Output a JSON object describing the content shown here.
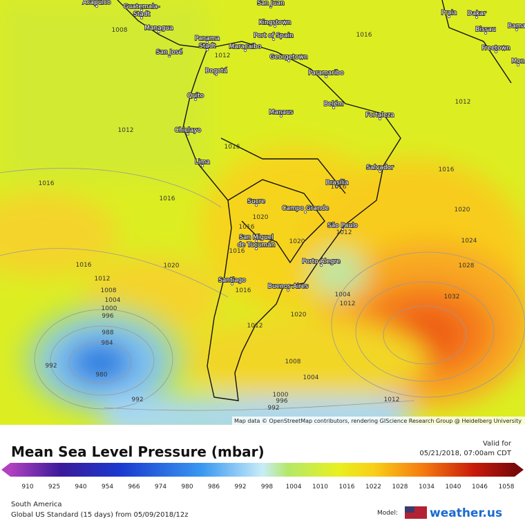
{
  "map": {
    "attribution": "Map data © OpenStreetMap contributors, rendering GIScience Research Group @ Heidelberg University",
    "cities": [
      "Acapulco",
      "Guatemala-",
      "Stadt",
      "Managua",
      "San José",
      "Panama",
      "Stadt",
      "Maracaibo",
      "San Juan",
      "Kingstown",
      "Port of Spain",
      "Georgetown",
      "Paramaribo",
      "Bogotá",
      "Quito",
      "Manaus",
      "Belém",
      "Fortaleza",
      "Chiclayo",
      "Lima",
      "Salvador",
      "Brasília",
      "Sucre",
      "Campo Grande",
      "São Paulo",
      "San Miguel",
      "de Tucumán",
      "Porto Alegre",
      "Santiago",
      "Buenos Aires",
      "Praia",
      "Dakar",
      "Bissau",
      "Freetown",
      "Bama",
      "Mon"
    ],
    "isobar_labels": [
      "1008",
      "1012",
      "1016",
      "1012",
      "1012",
      "1016",
      "1016",
      "1016",
      "1016",
      "1020",
      "1016",
      "1020",
      "1016",
      "1012",
      "1020",
      "1016",
      "1024",
      "1016",
      "1020",
      "1028",
      "1012",
      "1016",
      "1008",
      "1004",
      "1000",
      "996",
      "1004",
      "1012",
      "1032",
      "1020",
      "1012",
      "988",
      "984",
      "992",
      "980",
      "1008",
      "1004",
      "992",
      "1000",
      "996",
      "992",
      "1012"
    ]
  },
  "legend": {
    "title": "Mean Sea Level Pressure (mbar)",
    "valid_label": "Valid for",
    "valid_time": "05/21/2018, 07:00am CDT",
    "ticks": [
      910,
      925,
      940,
      954,
      966,
      974,
      980,
      986,
      992,
      998,
      1004,
      1010,
      1016,
      1022,
      1028,
      1034,
      1040,
      1046,
      1058
    ],
    "region": "South America",
    "model_run": "Global US Standard (15 days) from 05/09/2018/12z",
    "model_label": "Model:",
    "brand": "weather.us"
  }
}
